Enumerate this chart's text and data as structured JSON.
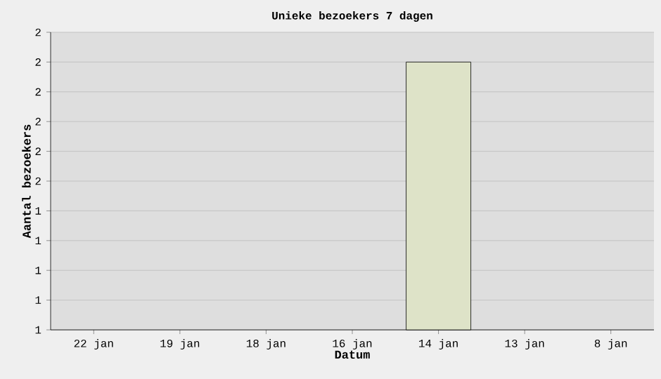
{
  "chart_data": {
    "type": "bar",
    "title": "Unieke bezoekers 7 dagen",
    "xlabel": "Datum",
    "ylabel": "Aantal bezoekers",
    "categories": [
      "22 jan",
      "19 jan",
      "18 jan",
      "16 jan",
      "14 jan",
      "13 jan",
      "8 jan"
    ],
    "values": [
      null,
      null,
      null,
      null,
      1.9,
      null,
      null
    ],
    "color": "#dee3c8",
    "ylim": [
      1,
      2
    ],
    "yticks": [
      {
        "value": 1,
        "label": "1"
      },
      {
        "value": 1.1,
        "label": "1"
      },
      {
        "value": 1.2,
        "label": "1"
      },
      {
        "value": 1.3,
        "label": "1"
      },
      {
        "value": 1.4,
        "label": "1"
      },
      {
        "value": 1.5,
        "label": "2"
      },
      {
        "value": 1.6,
        "label": "2"
      },
      {
        "value": 1.7,
        "label": "2"
      },
      {
        "value": 1.8,
        "label": "2"
      },
      {
        "value": 1.9,
        "label": "2"
      },
      {
        "value": 2,
        "label": "2"
      }
    ],
    "grid": "y"
  }
}
